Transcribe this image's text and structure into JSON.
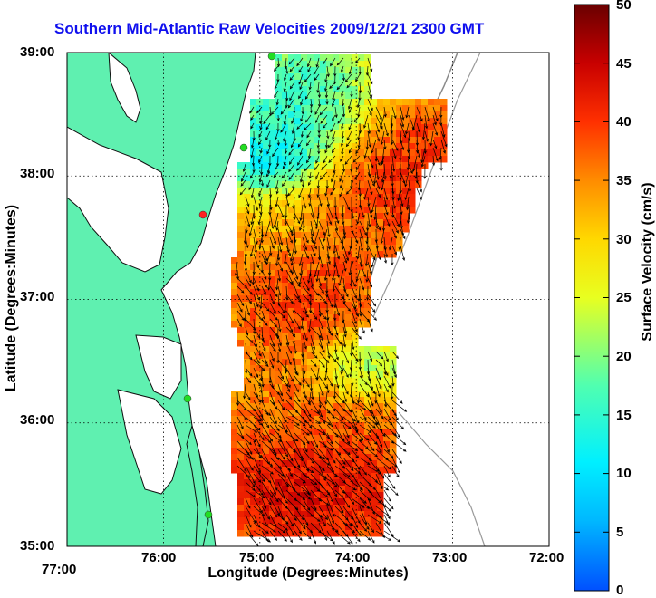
{
  "map": {
    "title": "Southern Mid-Atlantic Raw Velocities 2009/12/21 2300 GMT",
    "xlabel": "Longitude (Degrees:Minutes)",
    "ylabel": "Latitude (Degrees:Minutes)",
    "x_ticks": [
      "77:00",
      "76:00",
      "75:00",
      "74:00",
      "73:00",
      "72:00"
    ],
    "y_ticks": [
      "39:00",
      "38:00",
      "37:00",
      "36:00",
      "35:00"
    ],
    "lon_range": [
      -77,
      -72
    ],
    "lat_range": [
      35,
      39
    ],
    "grid": true,
    "colorbar": {
      "label": "Surface Velocity (cm/s)",
      "ticks": [
        "50",
        "45",
        "40",
        "35",
        "30",
        "25",
        "20",
        "15",
        "10",
        "5",
        "0"
      ],
      "range": [
        0,
        50
      ]
    },
    "colors": {
      "title": "#1010ee",
      "land": "#5ff0b0",
      "coast": "#101010",
      "station": "#22dd22",
      "station_alt": "#ff2222"
    }
  }
}
